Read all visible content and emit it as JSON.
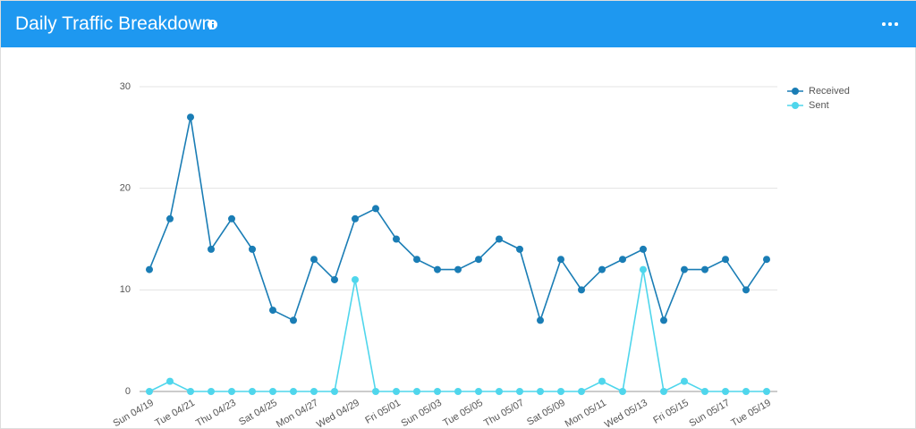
{
  "chart_data": {
    "type": "line",
    "title": "Daily Traffic Breakdown",
    "categories": [
      "Sun 04/19",
      null,
      "Tue 04/21",
      null,
      "Thu 04/23",
      null,
      "Sat 04/25",
      null,
      "Mon 04/27",
      null,
      "Wed 04/29",
      null,
      "Fri 05/01",
      null,
      "Sun 05/03",
      null,
      "Tue 05/05",
      null,
      "Thu 05/07",
      null,
      "Sat 05/09",
      null,
      "Mon 05/11",
      null,
      "Wed 05/13",
      null,
      "Fri 05/15",
      null,
      "Sun 05/17",
      null,
      "Tue 05/19"
    ],
    "series": [
      {
        "name": "Received",
        "color": "#1a7db5",
        "values": [
          12,
          17,
          27,
          14,
          17,
          14,
          8,
          7,
          13,
          11,
          17,
          18,
          15,
          13,
          12,
          12,
          13,
          15,
          14,
          7,
          13,
          10,
          12,
          13,
          14,
          7,
          12,
          12,
          13,
          10,
          13
        ]
      },
      {
        "name": "Sent",
        "color": "#4fd6ec",
        "values": [
          0,
          1,
          0,
          0,
          0,
          0,
          0,
          0,
          0,
          0,
          11,
          0,
          0,
          0,
          0,
          0,
          0,
          0,
          0,
          0,
          0,
          0,
          1,
          0,
          12,
          0,
          1,
          0,
          0,
          0,
          0
        ]
      }
    ],
    "ylim": [
      0,
      30
    ],
    "yticks": [
      0,
      10,
      20,
      30
    ],
    "grid": true,
    "legend": "top-right"
  }
}
